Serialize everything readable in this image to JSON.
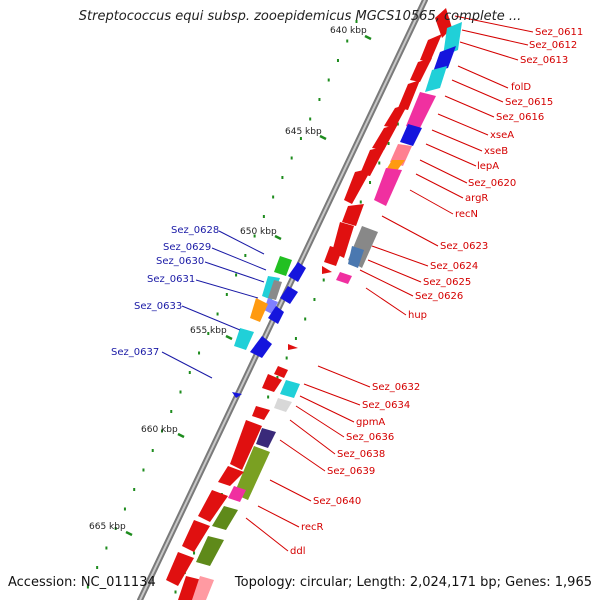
{
  "title": "Streptococcus equi subsp. zooepidemicus MGCS10565, complete ...",
  "accession": "Accession: NC_011134",
  "topology": "Topology: circular; Length: 2,024,171 bp; Genes: 1,965",
  "kbp_labels": [
    "640 kbp",
    "645 kbp",
    "650 kbp",
    "655 kbp",
    "660 kbp",
    "665 kbp"
  ],
  "left_labels": [
    "Sez_0628",
    "Sez_0629",
    "Sez_0630",
    "Sez_0631",
    "Sez_0633",
    "Sez_0637"
  ],
  "right_labels": [
    "Sez_0611",
    "Sez_0612",
    "Sez_0613",
    "folD",
    "Sez_0615",
    "Sez_0616",
    "xseA",
    "xseB",
    "lepA",
    "Sez_0620",
    "argR",
    "recN",
    "Sez_0623",
    "Sez_0624",
    "Sez_0625",
    "Sez_0626",
    "hup",
    "Sez_0632",
    "Sez_0634",
    "gpmA",
    "Sez_0636",
    "Sez_0638",
    "Sez_0639",
    "Sez_0640",
    "recR",
    "ddl"
  ],
  "colors": {
    "forward_label": "#d40000",
    "reverse_label": "#1a1aa6",
    "backbone": "#8a8a8a",
    "tick": "#1e8c1e"
  }
}
